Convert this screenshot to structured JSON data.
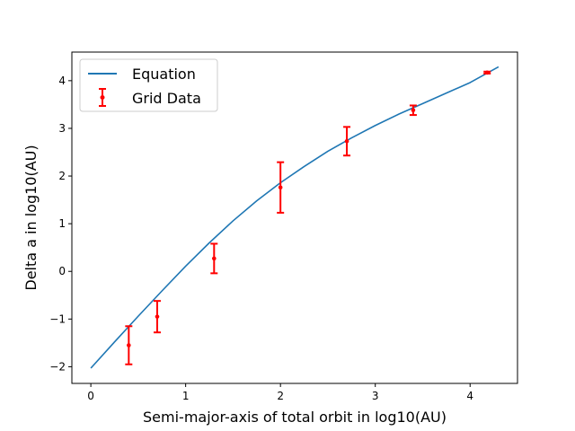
{
  "chart_data": {
    "type": "line",
    "xlabel": "Semi-major-axis of total orbit in log10(AU)",
    "ylabel": "Delta a in log10(AU)",
    "xlim": [
      -0.2,
      4.5
    ],
    "ylim": [
      -2.35,
      4.6
    ],
    "x_ticks": [
      0,
      1,
      2,
      3,
      4
    ],
    "y_ticks": [
      -2,
      -1,
      0,
      1,
      2,
      3,
      4
    ],
    "x_tick_labels": [
      "0",
      "1",
      "2",
      "3",
      "4"
    ],
    "y_tick_labels": [
      "−2",
      "−1",
      "0",
      "1",
      "2",
      "3",
      "4"
    ],
    "grid": false,
    "legend": "top-left",
    "series": [
      {
        "name": "Equation",
        "kind": "line",
        "color": "#1f77b4",
        "x": [
          0.0,
          0.25,
          0.5,
          0.75,
          1.0,
          1.25,
          1.5,
          1.75,
          2.0,
          2.25,
          2.5,
          2.75,
          3.0,
          3.25,
          3.5,
          3.75,
          4.0,
          4.3
        ],
        "y": [
          -2.03,
          -1.48,
          -0.94,
          -0.41,
          0.11,
          0.6,
          1.06,
          1.48,
          1.86,
          2.2,
          2.52,
          2.8,
          3.06,
          3.3,
          3.52,
          3.74,
          3.96,
          4.29
        ]
      },
      {
        "name": "Grid Data",
        "kind": "errorbar",
        "color": "#ff0000",
        "x": [
          0.4,
          0.7,
          1.3,
          2.0,
          2.7,
          3.4,
          4.18
        ],
        "y": [
          -1.55,
          -0.95,
          0.27,
          1.76,
          2.73,
          3.38,
          4.17
        ],
        "yerr": [
          0.4,
          0.33,
          0.31,
          0.53,
          0.3,
          0.1,
          0.02
        ]
      }
    ]
  }
}
